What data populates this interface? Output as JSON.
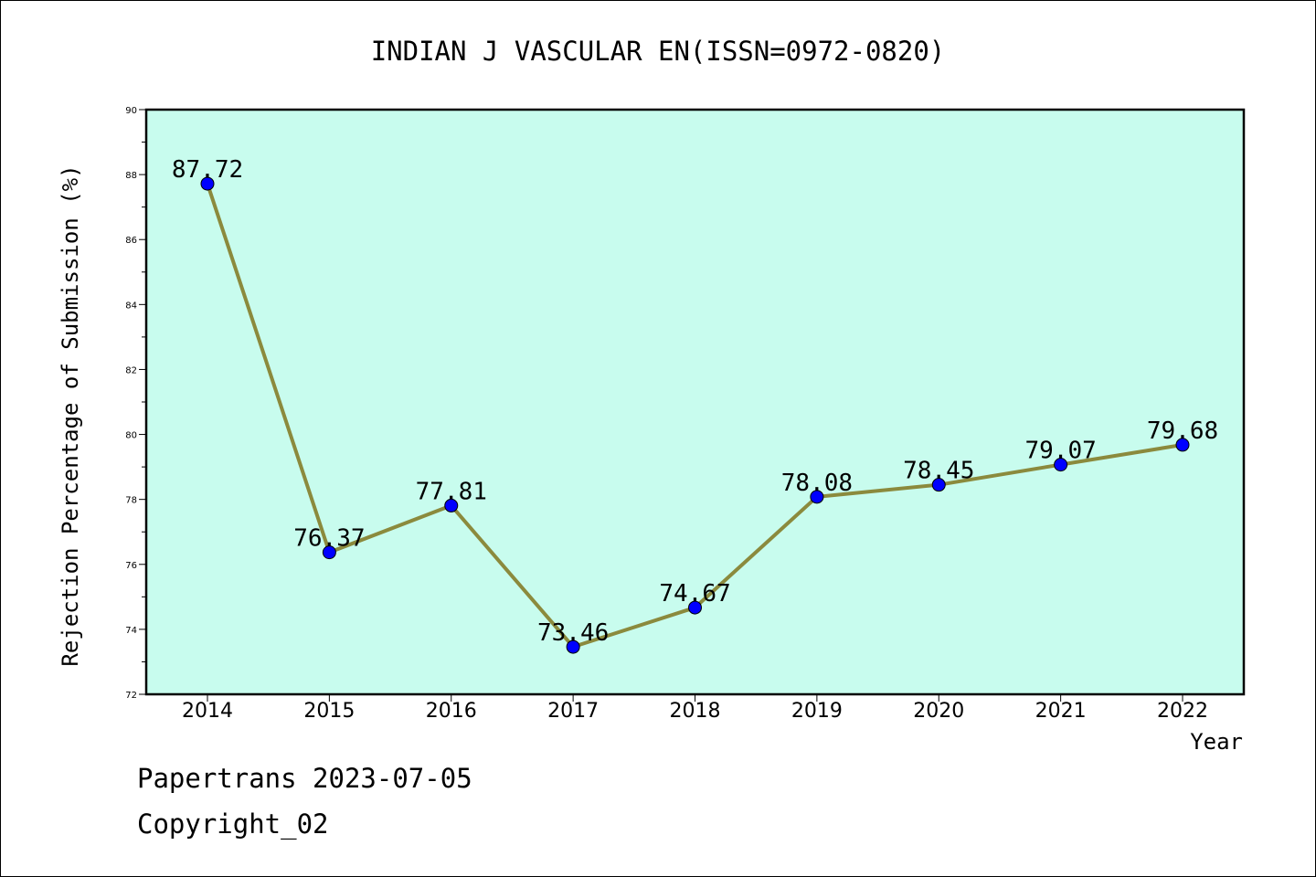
{
  "chart_data": {
    "type": "line",
    "title": "INDIAN J VASCULAR EN(ISSN=0972-0820)",
    "xlabel": "Year",
    "ylabel": "Rejection Percentage of Submission (%)",
    "categories": [
      "2014",
      "2015",
      "2016",
      "2017",
      "2018",
      "2019",
      "2020",
      "2021",
      "2022"
    ],
    "values": [
      87.72,
      76.37,
      77.81,
      73.46,
      74.67,
      78.08,
      78.45,
      79.07,
      79.68
    ],
    "data_labels": [
      "87.72",
      "76.37",
      "77.81",
      "73.46",
      "74.67",
      "78.08",
      "78.45",
      "79.07",
      "79.68"
    ],
    "ylim": [
      72,
      90
    ],
    "y_ticks": [
      72,
      74,
      76,
      78,
      80,
      82,
      84,
      86,
      88,
      90
    ],
    "grid": false,
    "legend": "none",
    "colors": {
      "plot_background": "#c8fcee",
      "line": "#8b8a3d",
      "marker": "#0000ff"
    }
  },
  "footer": {
    "line1": "Papertrans 2023-07-05",
    "line2": "Copyright_02"
  }
}
